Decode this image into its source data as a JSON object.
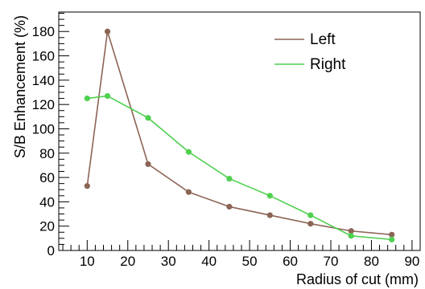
{
  "chart_data": {
    "type": "line",
    "title": "",
    "xlabel": "Radius of cut (mm)",
    "ylabel": "S/B Enhancement (%)",
    "xlim": [
      3,
      92
    ],
    "ylim": [
      0,
      196
    ],
    "x_major_ticks": [
      10,
      20,
      30,
      40,
      50,
      60,
      70,
      80,
      90
    ],
    "y_major_ticks": [
      0,
      20,
      40,
      60,
      80,
      100,
      120,
      140,
      160,
      180
    ],
    "grid": false,
    "legend": "top-right",
    "series": [
      {
        "name": "Left",
        "color": "#8c6455",
        "x": [
          10,
          15,
          25,
          35,
          45,
          55,
          65,
          75,
          85
        ],
        "y": [
          53,
          180,
          71,
          48,
          36,
          29,
          22,
          16,
          13
        ]
      },
      {
        "name": "Right",
        "color": "#4fd04f",
        "x": [
          10,
          15,
          25,
          35,
          45,
          55,
          65,
          75,
          85
        ],
        "y": [
          125,
          127,
          109,
          81,
          59,
          45,
          29,
          12,
          9
        ]
      }
    ]
  }
}
